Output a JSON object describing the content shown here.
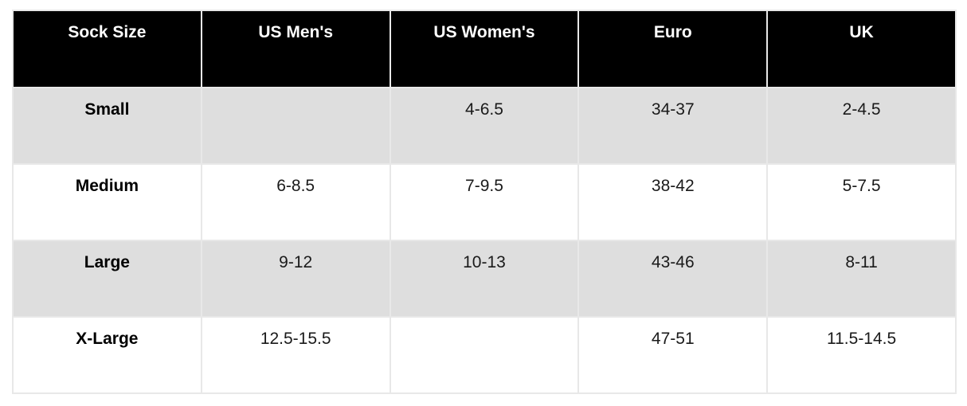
{
  "chart_data": {
    "type": "table",
    "columns": [
      "Sock Size",
      "US Men's",
      "US Women's",
      "Euro",
      "UK"
    ],
    "rows": [
      [
        "Small",
        "",
        "4-6.5",
        "34-37",
        "2-4.5"
      ],
      [
        "Medium",
        "6-8.5",
        "7-9.5",
        "38-42",
        "5-7.5"
      ],
      [
        "Large",
        "9-12",
        "10-13",
        "43-46",
        "8-11"
      ],
      [
        "X-Large",
        "12.5-15.5",
        "",
        "47-51",
        "11.5-14.5"
      ]
    ],
    "layout": {
      "header_align": "center",
      "cell_align": "center",
      "alternating_rows": true
    }
  },
  "colors": {
    "header_bg": "#000000",
    "header_text": "#ffffff",
    "row_alt_bg": "#dedede",
    "row_bg": "#ffffff",
    "border": "#e8e8e8",
    "body_text": "#1a1a1a"
  }
}
